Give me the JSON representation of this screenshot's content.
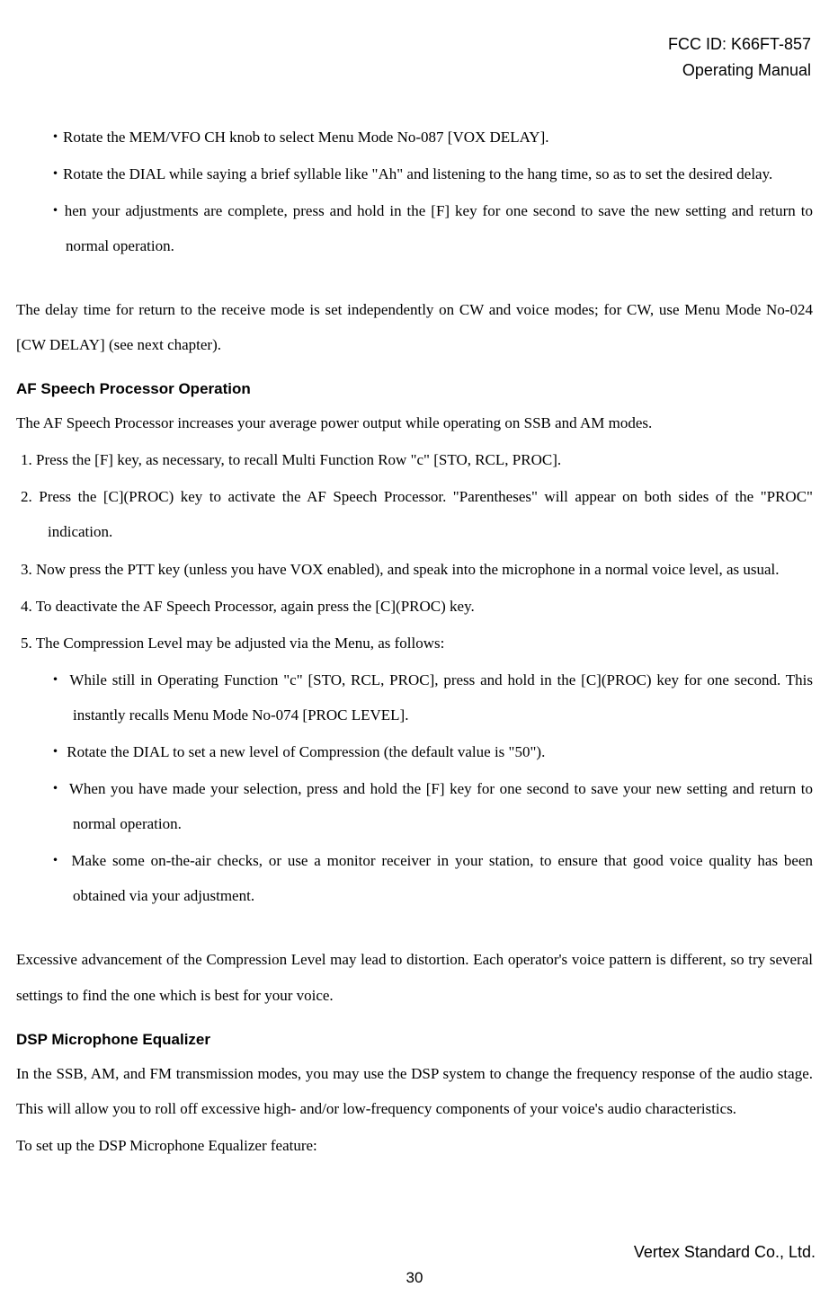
{
  "header": {
    "fcc_id": "FCC ID: K66FT-857",
    "doc_type": "Operating Manual"
  },
  "intro_steps": [
    "・Rotate the MEM/VFO CH knob to select Menu Mode No-087 [VOX DELAY].",
    "・Rotate the DIAL while saying a brief syllable like \"Ah\" and listening to the hang time, so as to set the desired delay.",
    "・hen your adjustments are complete, press and hold in the [F] key for one second to save the new setting and return to normal operation."
  ],
  "delay_note": "The delay time for return to the receive mode is set independently on CW and voice modes; for CW, use Menu Mode No-024 [CW DELAY] (see next chapter).",
  "section1": {
    "heading": "AF Speech Processor Operation",
    "intro": "The AF Speech Processor increases your average power output while operating on SSB and AM modes.",
    "items": [
      "1.    Press the [F] key, as necessary, to recall Multi Function Row \"c\" [STO, RCL, PROC].",
      "2.    Press the [C](PROC) key to activate the AF Speech Processor. \"Parentheses\" will appear on both sides of the \"PROC\" indication.",
      "3.    Now press the PTT key (unless you have VOX enabled), and speak into the microphone in a normal voice level, as usual.",
      "4.    To deactivate the AF Speech Processor, again press the [C](PROC) key.",
      "5.    The Compression Level may be adjusted via the Menu, as follows:"
    ],
    "sub_items": [
      "・  While still in Operating Function \"c\" [STO, RCL, PROC], press and hold in the [C](PROC) key for one second. This instantly recalls Menu Mode No-074 [PROC LEVEL].",
      "・  Rotate the DIAL to set a new level of Compression (the default value is \"50\").",
      "・  When you have made your selection, press and hold the [F] key for one second to save your new setting and return to normal operation.",
      "・  Make some on-the-air checks, or use a monitor receiver in your station, to ensure that good voice quality has been obtained via your adjustment."
    ],
    "closing": "Excessive advancement of the Compression Level may lead to distortion. Each operator's voice pattern is different, so try several settings to find the one which is best for your voice."
  },
  "section2": {
    "heading": "DSP Microphone Equalizer",
    "para1": "In the SSB, AM, and FM transmission modes, you may use the DSP system to change the frequency response of the audio stage. This will allow you to roll off excessive high- and/or low-frequency components of your voice's audio characteristics.",
    "para2": "To set up the DSP Microphone Equalizer feature:"
  },
  "footer": {
    "company": "Vertex Standard Co., Ltd.",
    "page": "30"
  }
}
